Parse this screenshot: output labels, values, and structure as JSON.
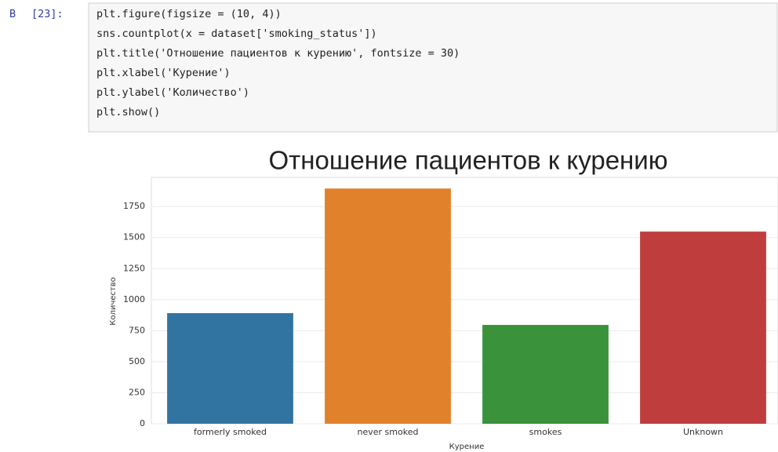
{
  "cell": {
    "prompt_in": "В",
    "prompt_num": "[23]:",
    "code": [
      "plt.figure(figsize = (10, 4))",
      "sns.countplot(x = dataset['smoking_status'])",
      "plt.title('Отношение пациентов к курению', fontsize = 30)",
      "plt.xlabel('Курение')",
      "plt.ylabel('Количество')",
      "plt.show()"
    ]
  },
  "chart_data": {
    "type": "bar",
    "title": "Отношение пациентов к курению",
    "x_label": "Курение",
    "y_label": "Количество",
    "categories": [
      "formerly smoked",
      "never smoked",
      "smokes",
      "Unknown"
    ],
    "values": [
      891,
      1895,
      796,
      1548
    ],
    "colors": [
      "#3274a1",
      "#e1812c",
      "#3a923a",
      "#c03d3e"
    ],
    "ylim": [
      0,
      1985
    ],
    "yticks": [
      0,
      250,
      500,
      750,
      1000,
      1250,
      1500,
      1750
    ],
    "grid": true
  }
}
